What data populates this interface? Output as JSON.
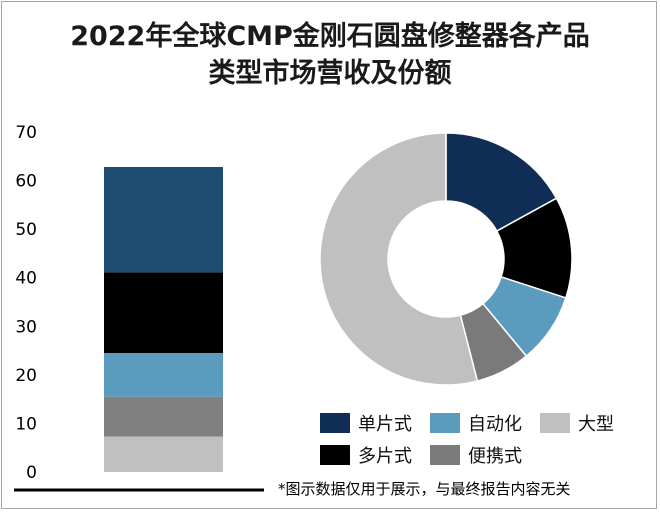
{
  "title_line1": "2022年全球CMP金刚石圆盘修整器各产品",
  "title_line2": "类型市场营收及份额",
  "footnote": "*图示数据仅用于展示，与最终报告内容无关",
  "chart_data": [
    {
      "type": "bar",
      "stacked": true,
      "categories": [
        ""
      ],
      "ylim": [
        0,
        70
      ],
      "yticks": [
        "0",
        "10",
        "20",
        "30",
        "40",
        "50",
        "60",
        "70"
      ],
      "series": [
        {
          "name": "大型",
          "values": [
            7.3
          ],
          "color": "#c0c0c0"
        },
        {
          "name": "便携式",
          "values": [
            8.2
          ],
          "color": "#808080"
        },
        {
          "name": "自动化",
          "values": [
            9.0
          ],
          "color": "#5b9bbd"
        },
        {
          "name": "多片式",
          "values": [
            16.6
          ],
          "color": "#000000"
        },
        {
          "name": "单片式",
          "values": [
            21.7
          ],
          "color": "#1e4b72"
        }
      ],
      "grid": false
    },
    {
      "type": "pie",
      "donut": true,
      "slices": [
        {
          "name": "单片式",
          "value": 17,
          "color": "#0f2d55"
        },
        {
          "name": "多片式",
          "value": 13,
          "color": "#000000"
        },
        {
          "name": "自动化",
          "value": 9,
          "color": "#5b9bbd"
        },
        {
          "name": "便携式",
          "value": 7,
          "color": "#7a7a7a"
        },
        {
          "name": "大型",
          "value": 54,
          "color": "#c0c0c0"
        }
      ]
    }
  ],
  "legend": [
    {
      "label": "单片式",
      "color": "#0f2d55"
    },
    {
      "label": "自动化",
      "color": "#5b9bbd"
    },
    {
      "label": "大型",
      "color": "#c0c0c0"
    },
    {
      "label": "多片式",
      "color": "#000000"
    },
    {
      "label": "便携式",
      "color": "#7a7a7a"
    }
  ]
}
